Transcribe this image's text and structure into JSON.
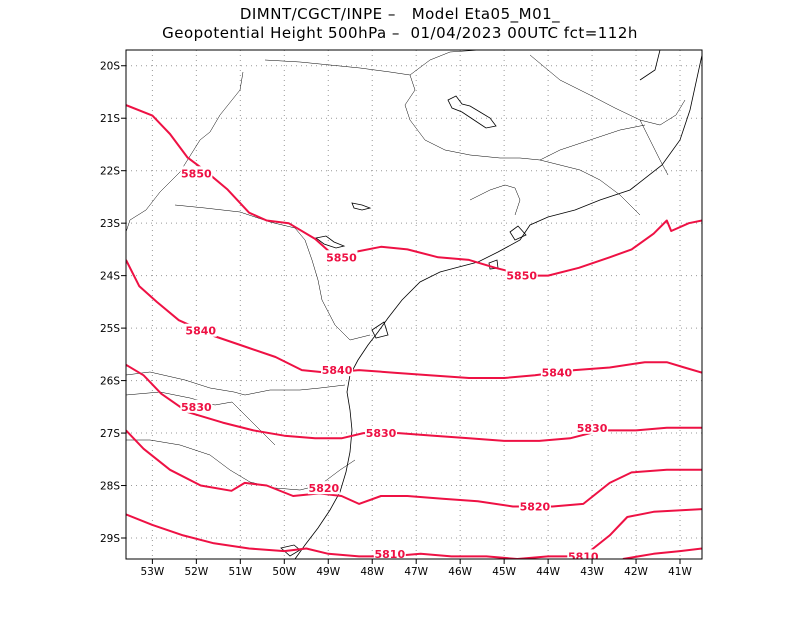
{
  "header": {
    "line1": "DIMNT/CGCT/INPE –   Model Eta05_M01_",
    "line2": "Geopotential Height 500hPa –  01/04/2023 00UTC fct=112h"
  },
  "map": {
    "lon_range": [
      -53.6,
      -40.5
    ],
    "lat_range": [
      -29.4,
      -19.7
    ],
    "lon_ticks": [
      {
        "value": -53,
        "label": "53W"
      },
      {
        "value": -52,
        "label": "52W"
      },
      {
        "value": -51,
        "label": "51W"
      },
      {
        "value": -50,
        "label": "50W"
      },
      {
        "value": -49,
        "label": "49W"
      },
      {
        "value": -48,
        "label": "48W"
      },
      {
        "value": -47,
        "label": "47W"
      },
      {
        "value": -46,
        "label": "46W"
      },
      {
        "value": -45,
        "label": "45W"
      },
      {
        "value": -44,
        "label": "44W"
      },
      {
        "value": -43,
        "label": "43W"
      },
      {
        "value": -42,
        "label": "42W"
      },
      {
        "value": -41,
        "label": "41W"
      }
    ],
    "lat_ticks": [
      {
        "value": -20,
        "label": "20S"
      },
      {
        "value": -21,
        "label": "21S"
      },
      {
        "value": -22,
        "label": "22S"
      },
      {
        "value": -23,
        "label": "23S"
      },
      {
        "value": -24,
        "label": "24S"
      },
      {
        "value": -25,
        "label": "25S"
      },
      {
        "value": -26,
        "label": "26S"
      },
      {
        "value": -27,
        "label": "27S"
      },
      {
        "value": -28,
        "label": "28S"
      },
      {
        "value": -29,
        "label": "29S"
      }
    ],
    "contour_color": "#ee1144",
    "contours": [
      {
        "level": "5850",
        "labels": [
          [
            -52.0,
            -22.05
          ],
          [
            -48.7,
            -23.65
          ],
          [
            -44.6,
            -24.0
          ]
        ],
        "points": [
          [
            -53.6,
            -20.75
          ],
          [
            -53.0,
            -20.95
          ],
          [
            -52.6,
            -21.3
          ],
          [
            -52.2,
            -21.75
          ],
          [
            -51.8,
            -22.0
          ],
          [
            -51.3,
            -22.35
          ],
          [
            -50.8,
            -22.8
          ],
          [
            -50.4,
            -22.95
          ],
          [
            -49.9,
            -23.0
          ],
          [
            -49.3,
            -23.3
          ],
          [
            -48.9,
            -23.6
          ],
          [
            -48.4,
            -23.55
          ],
          [
            -47.8,
            -23.45
          ],
          [
            -47.2,
            -23.5
          ],
          [
            -46.5,
            -23.65
          ],
          [
            -45.8,
            -23.7
          ],
          [
            -45.2,
            -23.85
          ],
          [
            -44.5,
            -24.0
          ],
          [
            -44.0,
            -24.0
          ],
          [
            -43.3,
            -23.85
          ],
          [
            -42.6,
            -23.65
          ],
          [
            -42.1,
            -23.5
          ],
          [
            -41.6,
            -23.2
          ],
          [
            -41.3,
            -22.95
          ],
          [
            -41.2,
            -23.15
          ],
          [
            -40.8,
            -23.0
          ],
          [
            -40.5,
            -22.95
          ]
        ]
      },
      {
        "level": "5840",
        "labels": [
          [
            -51.9,
            -25.05
          ],
          [
            -48.8,
            -25.8
          ],
          [
            -43.8,
            -25.85
          ]
        ],
        "points": [
          [
            -53.6,
            -23.7
          ],
          [
            -53.3,
            -24.2
          ],
          [
            -52.9,
            -24.5
          ],
          [
            -52.4,
            -24.85
          ],
          [
            -51.6,
            -25.15
          ],
          [
            -50.9,
            -25.35
          ],
          [
            -50.2,
            -25.55
          ],
          [
            -49.6,
            -25.8
          ],
          [
            -49.0,
            -25.85
          ],
          [
            -48.3,
            -25.8
          ],
          [
            -47.5,
            -25.85
          ],
          [
            -46.7,
            -25.9
          ],
          [
            -45.8,
            -25.95
          ],
          [
            -45.0,
            -25.95
          ],
          [
            -44.3,
            -25.9
          ],
          [
            -43.4,
            -25.8
          ],
          [
            -42.6,
            -25.75
          ],
          [
            -41.8,
            -25.65
          ],
          [
            -41.3,
            -25.65
          ],
          [
            -40.9,
            -25.75
          ],
          [
            -40.5,
            -25.85
          ]
        ]
      },
      {
        "level": "5830",
        "labels": [
          [
            -52.0,
            -26.5
          ],
          [
            -47.8,
            -27.0
          ],
          [
            -43.0,
            -26.9
          ]
        ],
        "points": [
          [
            -53.6,
            -25.7
          ],
          [
            -53.2,
            -25.9
          ],
          [
            -52.8,
            -26.25
          ],
          [
            -52.2,
            -26.6
          ],
          [
            -51.4,
            -26.8
          ],
          [
            -50.7,
            -26.95
          ],
          [
            -50.0,
            -27.05
          ],
          [
            -49.3,
            -27.1
          ],
          [
            -48.7,
            -27.1
          ],
          [
            -48.2,
            -27.0
          ],
          [
            -47.4,
            -27.0
          ],
          [
            -46.6,
            -27.05
          ],
          [
            -45.8,
            -27.1
          ],
          [
            -45.0,
            -27.15
          ],
          [
            -44.2,
            -27.15
          ],
          [
            -43.5,
            -27.1
          ],
          [
            -42.8,
            -26.95
          ],
          [
            -42.0,
            -26.95
          ],
          [
            -41.3,
            -26.9
          ],
          [
            -40.5,
            -26.9
          ]
        ]
      },
      {
        "level": "5820",
        "labels": [
          [
            -49.1,
            -28.05
          ],
          [
            -44.3,
            -28.4
          ]
        ],
        "points": [
          [
            -53.6,
            -26.95
          ],
          [
            -53.2,
            -27.3
          ],
          [
            -52.6,
            -27.7
          ],
          [
            -51.9,
            -28.0
          ],
          [
            -51.2,
            -28.1
          ],
          [
            -50.9,
            -27.95
          ],
          [
            -50.4,
            -28.0
          ],
          [
            -49.8,
            -28.2
          ],
          [
            -49.2,
            -28.15
          ],
          [
            -48.7,
            -28.2
          ],
          [
            -48.3,
            -28.35
          ],
          [
            -47.8,
            -28.2
          ],
          [
            -47.2,
            -28.2
          ],
          [
            -46.4,
            -28.25
          ],
          [
            -45.6,
            -28.3
          ],
          [
            -44.8,
            -28.4
          ],
          [
            -43.9,
            -28.4
          ],
          [
            -43.2,
            -28.35
          ],
          [
            -42.6,
            -27.95
          ],
          [
            -42.1,
            -27.75
          ],
          [
            -41.3,
            -27.7
          ],
          [
            -40.5,
            -27.7
          ]
        ]
      },
      {
        "level": "5810",
        "labels": [
          [
            -47.6,
            -29.3
          ],
          [
            -43.2,
            -29.35
          ]
        ],
        "points": [
          [
            -53.6,
            -28.55
          ],
          [
            -53.0,
            -28.75
          ],
          [
            -52.3,
            -28.95
          ],
          [
            -51.6,
            -29.1
          ],
          [
            -50.8,
            -29.2
          ],
          [
            -50.0,
            -29.25
          ],
          [
            -49.5,
            -29.2
          ],
          [
            -49.0,
            -29.3
          ],
          [
            -48.3,
            -29.35
          ],
          [
            -47.6,
            -29.35
          ],
          [
            -46.9,
            -29.3
          ],
          [
            -46.2,
            -29.35
          ],
          [
            -45.4,
            -29.35
          ],
          [
            -44.7,
            -29.4
          ],
          [
            -44.0,
            -29.35
          ],
          [
            -43.2,
            -29.35
          ],
          [
            -42.6,
            -28.95
          ],
          [
            -42.2,
            -28.6
          ],
          [
            -41.6,
            -28.5
          ],
          [
            -40.5,
            -28.45
          ]
        ]
      },
      {
        "level": "5810",
        "labels": [],
        "points": [
          [
            -42.3,
            -29.4
          ],
          [
            -41.6,
            -29.3
          ],
          [
            -41.0,
            -29.25
          ],
          [
            -40.5,
            -29.2
          ]
        ]
      }
    ]
  }
}
